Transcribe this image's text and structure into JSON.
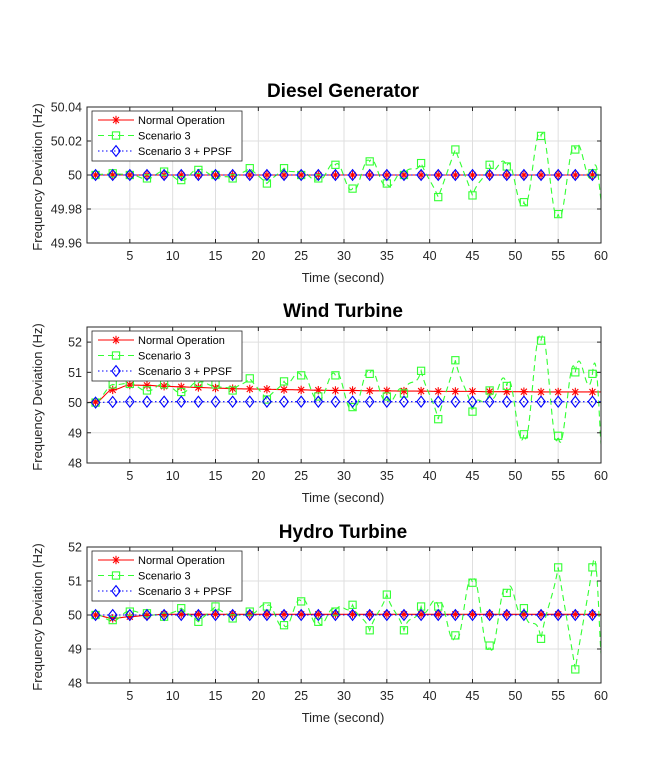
{
  "chart_data": [
    {
      "type": "line",
      "title": "Diesel Generator",
      "xlabel": "Time (second)",
      "ylabel": "Frequency Deviation (Hz)",
      "xlim": [
        0,
        60
      ],
      "ylim": [
        49.96,
        50.04
      ],
      "xticks": [
        5,
        10,
        15,
        20,
        25,
        30,
        35,
        40,
        45,
        50,
        55,
        60
      ],
      "yticks": [
        49.96,
        49.98,
        50,
        50.02,
        50.04
      ],
      "ytick_labels": [
        "49.96",
        "49.98",
        "50",
        "50.02",
        "50.04"
      ],
      "legend": [
        "Normal Operation",
        "Scenario 3",
        "Scenario 3 + PPSF"
      ],
      "legend_position": "top-left",
      "grid": true,
      "base": 50,
      "settle": 0,
      "osc_amp": [
        0.001,
        0.025
      ],
      "series": [
        {
          "name": "Normal Operation",
          "color": "#ff0000",
          "marker": "asterisk",
          "style": "solid",
          "x": [
            1,
            3,
            5,
            7,
            9,
            11,
            13,
            15,
            17,
            19,
            21,
            23,
            25,
            27,
            29,
            31,
            33,
            35,
            37,
            39,
            41,
            43,
            45,
            47,
            49,
            51,
            53,
            55,
            57,
            59
          ],
          "values": [
            50,
            50,
            50,
            50,
            50,
            50,
            50,
            50,
            50,
            50,
            50,
            50,
            50,
            50,
            50,
            50,
            50,
            50,
            50,
            50,
            50,
            50,
            50,
            50,
            50,
            50,
            50,
            50,
            50,
            50
          ]
        },
        {
          "name": "Scenario 3",
          "color": "#33ff33",
          "marker": "square",
          "style": "dashed",
          "x": [
            1,
            3,
            5,
            7,
            9,
            11,
            13,
            15,
            17,
            19,
            21,
            23,
            25,
            27,
            29,
            31,
            33,
            35,
            37,
            39,
            41,
            43,
            45,
            47,
            49,
            51,
            53,
            55,
            57,
            59
          ],
          "values": [
            50,
            50.001,
            50,
            49.998,
            50.002,
            49.997,
            50.003,
            50,
            49.998,
            50.004,
            49.995,
            50.004,
            50,
            49.998,
            50.006,
            49.992,
            50.008,
            49.995,
            50,
            50.007,
            49.987,
            50.015,
            49.988,
            50.006,
            50.005,
            49.984,
            50.023,
            49.977,
            50.015,
            50.001
          ]
        },
        {
          "name": "Scenario 3 + PPSF",
          "color": "#0000ff",
          "marker": "diamond",
          "style": "dotted",
          "x": [
            1,
            3,
            5,
            7,
            9,
            11,
            13,
            15,
            17,
            19,
            21,
            23,
            25,
            27,
            29,
            31,
            33,
            35,
            37,
            39,
            41,
            43,
            45,
            47,
            49,
            51,
            53,
            55,
            57,
            59
          ],
          "values": [
            50,
            50,
            50,
            50,
            50,
            50,
            50,
            50,
            50,
            50,
            50,
            50,
            50,
            50,
            50,
            50,
            50,
            50,
            50,
            50,
            50,
            50,
            50,
            50,
            50,
            50,
            50,
            50,
            50,
            50
          ]
        }
      ]
    },
    {
      "type": "line",
      "title": "Wind Turbine",
      "xlabel": "Time (second)",
      "ylabel": "Frequency Deviation (Hz)",
      "xlim": [
        0,
        60
      ],
      "ylim": [
        48,
        52.5
      ],
      "xticks": [
        5,
        10,
        15,
        20,
        25,
        30,
        35,
        40,
        45,
        50,
        55,
        60
      ],
      "yticks": [
        48,
        49,
        50,
        51,
        52
      ],
      "ytick_labels": [
        "48",
        "49",
        "50",
        "51",
        "52"
      ],
      "legend": [
        "Normal Operation",
        "Scenario 3",
        "Scenario 3 + PPSF"
      ],
      "legend_position": "top-left",
      "grid": true,
      "base": 50,
      "settle": 50.35,
      "osc_amp": [
        0.05,
        2.3
      ],
      "series": [
        {
          "name": "Normal Operation",
          "color": "#ff0000",
          "marker": "asterisk",
          "style": "solid",
          "x": [
            1,
            3,
            5,
            7,
            9,
            11,
            13,
            15,
            17,
            19,
            21,
            23,
            25,
            27,
            29,
            31,
            33,
            35,
            37,
            39,
            41,
            43,
            45,
            47,
            49,
            51,
            53,
            55,
            57,
            59
          ],
          "values": [
            50.02,
            50.42,
            50.58,
            50.57,
            50.54,
            50.52,
            50.5,
            50.48,
            50.46,
            50.45,
            50.44,
            50.43,
            50.42,
            50.41,
            50.4,
            50.4,
            50.39,
            50.39,
            50.38,
            50.38,
            50.37,
            50.37,
            50.37,
            50.36,
            50.36,
            50.36,
            50.35,
            50.35,
            50.35,
            50.35
          ]
        },
        {
          "name": "Scenario 3",
          "color": "#33ff33",
          "marker": "square",
          "style": "dashed",
          "x": [
            1,
            3,
            5,
            7,
            9,
            11,
            13,
            15,
            17,
            19,
            21,
            23,
            25,
            27,
            29,
            31,
            33,
            35,
            37,
            39,
            41,
            43,
            45,
            47,
            49,
            51,
            53,
            55,
            57,
            59
          ],
          "values": [
            50,
            50.6,
            50.62,
            50.4,
            50.6,
            50.35,
            50.65,
            50.6,
            50.4,
            50.8,
            50.1,
            50.7,
            50.9,
            50.2,
            50.9,
            49.85,
            50.95,
            50.2,
            50.3,
            51.05,
            49.45,
            51.4,
            49.7,
            50.4,
            50.55,
            48.95,
            52.05,
            48.9,
            51.0,
            50.95
          ]
        },
        {
          "name": "Scenario 3 + PPSF",
          "color": "#0000ff",
          "marker": "diamond",
          "style": "dotted",
          "x": [
            1,
            3,
            5,
            7,
            9,
            11,
            13,
            15,
            17,
            19,
            21,
            23,
            25,
            27,
            29,
            31,
            33,
            35,
            37,
            39,
            41,
            43,
            45,
            47,
            49,
            51,
            53,
            55,
            57,
            59
          ],
          "values": [
            50,
            50.02,
            50.03,
            50.03,
            50.03,
            50.03,
            50.03,
            50.03,
            50.03,
            50.03,
            50.03,
            50.03,
            50.03,
            50.03,
            50.03,
            50.03,
            50.03,
            50.03,
            50.03,
            50.03,
            50.03,
            50.03,
            50.03,
            50.03,
            50.03,
            50.03,
            50.03,
            50.03,
            50.03,
            50.03
          ]
        }
      ]
    },
    {
      "type": "line",
      "title": "Hydro Turbine",
      "xlabel": "Time (second)",
      "ylabel": "Frequency Deviation (Hz)",
      "xlim": [
        0,
        60
      ],
      "ylim": [
        48,
        52
      ],
      "xticks": [
        5,
        10,
        15,
        20,
        25,
        30,
        35,
        40,
        45,
        50,
        55,
        60
      ],
      "yticks": [
        48,
        49,
        50,
        51,
        52
      ],
      "ytick_labels": [
        "48",
        "49",
        "50",
        "51",
        "52"
      ],
      "legend": [
        "Normal Operation",
        "Scenario 3",
        "Scenario 3 + PPSF"
      ],
      "legend_position": "top-left",
      "grid": true,
      "base": 50,
      "settle": 50.02,
      "osc_amp": [
        0.1,
        1.9
      ],
      "series": [
        {
          "name": "Normal Operation",
          "color": "#ff0000",
          "marker": "asterisk",
          "style": "solid",
          "x": [
            1,
            3,
            5,
            7,
            9,
            11,
            13,
            15,
            17,
            19,
            21,
            23,
            25,
            27,
            29,
            31,
            33,
            35,
            37,
            39,
            41,
            43,
            45,
            47,
            49,
            51,
            53,
            55,
            57,
            59
          ],
          "values": [
            50,
            49.9,
            49.95,
            49.99,
            50.02,
            50.02,
            50.02,
            50.02,
            50.02,
            50.02,
            50.02,
            50.02,
            50.02,
            50.02,
            50.02,
            50.02,
            50.02,
            50.02,
            50.02,
            50.02,
            50.02,
            50.02,
            50.02,
            50.02,
            50.02,
            50.02,
            50.02,
            50.02,
            50.02,
            50.02
          ]
        },
        {
          "name": "Scenario 3",
          "color": "#33ff33",
          "marker": "square",
          "style": "dashed",
          "x": [
            1,
            3,
            5,
            7,
            9,
            11,
            13,
            15,
            17,
            19,
            21,
            23,
            25,
            27,
            29,
            31,
            33,
            35,
            37,
            39,
            41,
            43,
            45,
            47,
            49,
            51,
            53,
            55,
            57,
            59
          ],
          "values": [
            50,
            49.85,
            50.1,
            50.05,
            49.95,
            50.2,
            49.8,
            50.25,
            49.9,
            50.1,
            50.25,
            49.7,
            50.4,
            49.8,
            50.1,
            50.3,
            49.55,
            50.6,
            49.55,
            50.25,
            50.25,
            49.4,
            50.95,
            49.1,
            50.65,
            50.2,
            49.3,
            51.4,
            48.4,
            51.4
          ]
        },
        {
          "name": "Scenario 3 + PPSF",
          "color": "#0000ff",
          "marker": "diamond",
          "style": "dotted",
          "x": [
            1,
            3,
            5,
            7,
            9,
            11,
            13,
            15,
            17,
            19,
            21,
            23,
            25,
            27,
            29,
            31,
            33,
            35,
            37,
            39,
            41,
            43,
            45,
            47,
            49,
            51,
            53,
            55,
            57,
            59
          ],
          "values": [
            50,
            50,
            50,
            50,
            50,
            50,
            50,
            50,
            50,
            50,
            50,
            50,
            50,
            50,
            50,
            50,
            50,
            50,
            50,
            50,
            50,
            50,
            50,
            50,
            50,
            50,
            50,
            50,
            50,
            50
          ]
        }
      ]
    }
  ]
}
